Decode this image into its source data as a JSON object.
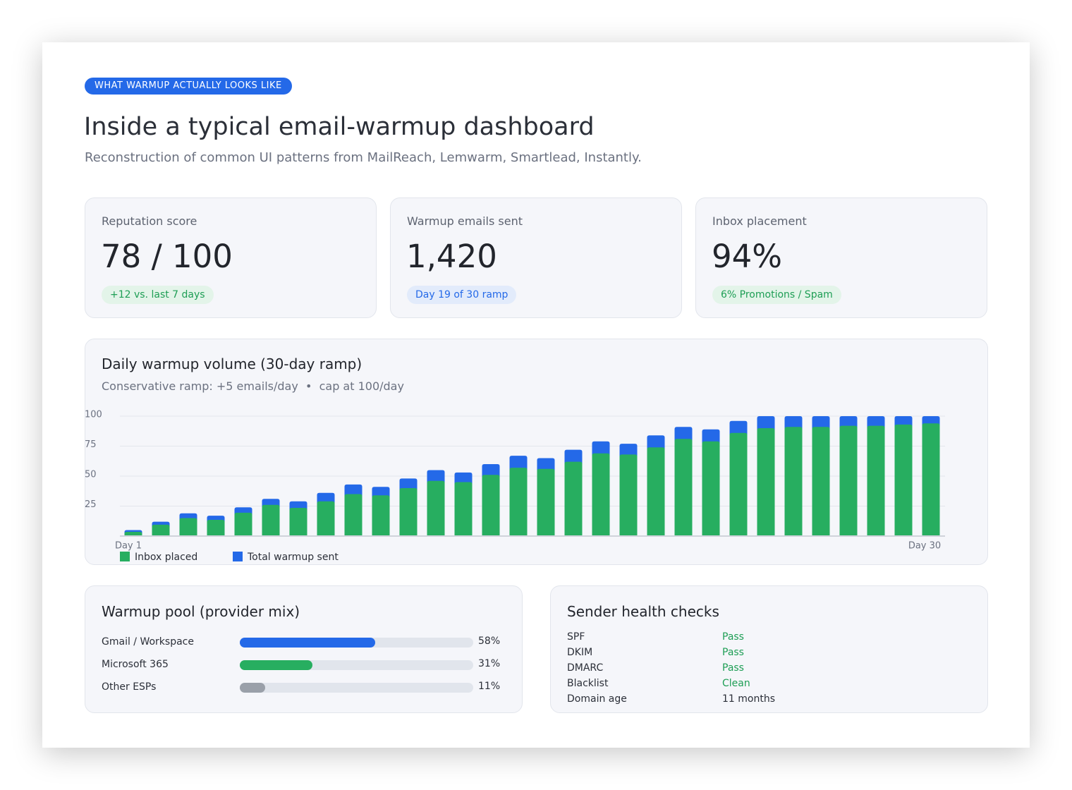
{
  "header": {
    "badge": "WHAT WARMUP ACTUALLY LOOKS LIKE",
    "title": "Inside a typical email-warmup dashboard",
    "subtitle": "Reconstruction of common UI patterns from MailReach, Lemwarm, Smartlead, Instantly."
  },
  "kpis": [
    {
      "label": "Reputation score",
      "value": "78 / 100",
      "note": "+12 vs. last 7 days",
      "color": "#1e9e55",
      "note_bg": "#e3f4e9"
    },
    {
      "label": "Warmup emails sent",
      "value": "1,420",
      "note": "Day 19 of 30 ramp",
      "color": "#2469e8",
      "note_bg": "#e2ebfb"
    },
    {
      "label": "Inbox placement",
      "value": "94%",
      "note": "6% Promotions / Spam",
      "color": "#1e9e55",
      "note_bg": "#e3f4e9"
    }
  ],
  "chart_data": {
    "type": "bar",
    "title": "Daily warmup volume (30-day ramp)",
    "subtitle": "Conservative ramp: +5 emails/day  •  cap at 100/day",
    "categories": [
      "Day 1",
      null,
      null,
      null,
      null,
      null,
      null,
      null,
      null,
      null,
      null,
      null,
      null,
      null,
      null,
      null,
      null,
      null,
      null,
      null,
      null,
      null,
      null,
      null,
      null,
      null,
      null,
      null,
      null,
      "Day 30"
    ],
    "series": [
      {
        "name": "Total warmup sent",
        "color": "#2469e8",
        "values": [
          5,
          12,
          19,
          17,
          24,
          31,
          29,
          36,
          43,
          41,
          48,
          55,
          53,
          60,
          67,
          65,
          72,
          79,
          77,
          84,
          91,
          89,
          96,
          100,
          100,
          100,
          100,
          100,
          100,
          100
        ]
      },
      {
        "name": "Inbox placed",
        "color": "#27ae60",
        "values": [
          3.5,
          9.5,
          15,
          13.5,
          19.5,
          26,
          23.5,
          29,
          35,
          34,
          40,
          46,
          45,
          51,
          57,
          56,
          62,
          69,
          68,
          74,
          81,
          79,
          86,
          90,
          91,
          91,
          92,
          92,
          93,
          94
        ]
      }
    ],
    "legend_order": [
      1,
      0
    ],
    "ylim": [
      0,
      100
    ],
    "yticks": [
      25,
      50,
      75,
      100
    ],
    "grid": true
  },
  "mix": {
    "title": "Warmup pool (provider mix)",
    "categories": [
      "Gmail / Workspace",
      "Microsoft 365",
      "Other ESPs"
    ],
    "values": [
      58,
      31,
      11
    ],
    "value_labels": [
      "58%",
      "31%",
      "11%"
    ],
    "colors": [
      "#2469e8",
      "#27ae60",
      "#9aa0a9"
    ],
    "xlim": [
      0,
      100
    ]
  },
  "health": {
    "title": "Sender health checks",
    "rows": [
      {
        "label": "SPF",
        "value": "Pass",
        "color": "#1e9e55"
      },
      {
        "label": "DKIM",
        "value": "Pass",
        "color": "#1e9e55"
      },
      {
        "label": "DMARC",
        "value": "Pass",
        "color": "#1e9e55"
      },
      {
        "label": "Blacklist",
        "value": "Clean",
        "color": "#1e9e55"
      },
      {
        "label": "Domain age",
        "value": "11 months",
        "color": "#2b2f38"
      }
    ]
  }
}
